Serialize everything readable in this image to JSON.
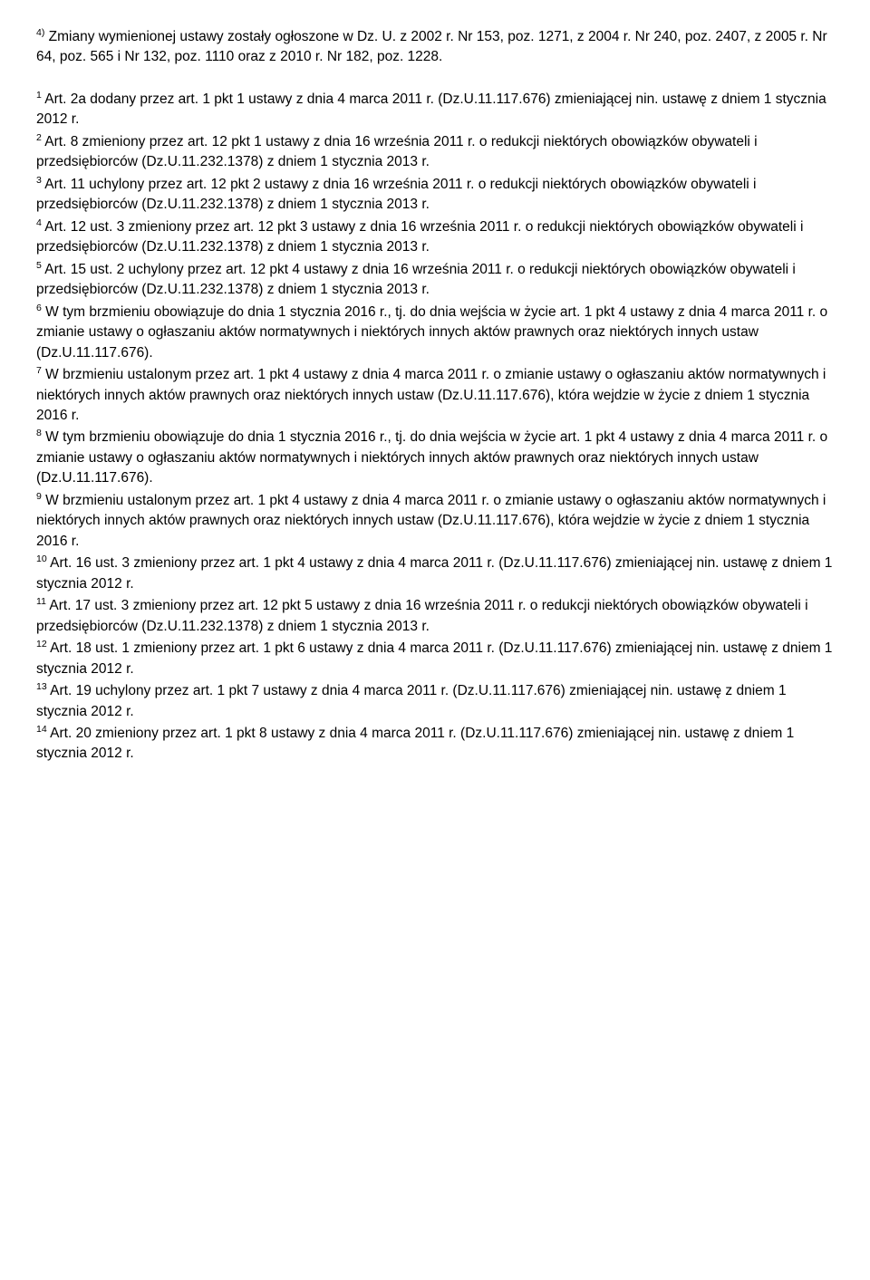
{
  "top_footnote": {
    "num": "4)",
    "text": " Zmiany wymienionej ustawy zostały ogłoszone w Dz. U. z 2002 r. Nr 153, poz. 1271, z 2004 r. Nr 240, poz. 2407, z 2005 r. Nr 64, poz. 565 i Nr 132, poz. 1110 oraz z 2010 r. Nr 182, poz. 1228."
  },
  "notes": [
    {
      "num": "1",
      "text": " Art. 2a dodany przez art. 1 pkt 1 ustawy z dnia 4 marca 2011 r. (Dz.U.11.117.676) zmieniającej nin. ustawę z dniem 1 stycznia 2012 r."
    },
    {
      "num": "2",
      "text": " Art. 8 zmieniony przez art. 12 pkt 1 ustawy z dnia 16 września 2011 r. o redukcji niektórych obowiązków obywateli i przedsiębiorców (Dz.U.11.232.1378) z dniem 1 stycznia 2013 r."
    },
    {
      "num": "3",
      "text": " Art. 11 uchylony przez art. 12 pkt 2 ustawy z dnia 16 września 2011 r. o redukcji niektórych obowiązków obywateli i przedsiębiorców (Dz.U.11.232.1378) z dniem 1 stycznia 2013 r."
    },
    {
      "num": "4",
      "text": " Art. 12 ust. 3 zmieniony przez art. 12 pkt 3 ustawy z dnia 16 września 2011 r. o redukcji niektórych obowiązków obywateli i przedsiębiorców (Dz.U.11.232.1378) z dniem 1 stycznia 2013 r."
    },
    {
      "num": "5",
      "text": " Art. 15 ust. 2 uchylony przez art. 12 pkt 4 ustawy z dnia 16 września 2011 r. o redukcji niektórych obowiązków obywateli i przedsiębiorców (Dz.U.11.232.1378) z dniem 1 stycznia 2013 r."
    },
    {
      "num": "6",
      "text": " W tym brzmieniu obowiązuje do dnia 1 stycznia 2016 r., tj. do dnia wejścia w życie art. 1 pkt 4 ustawy z dnia 4 marca 2011 r. o zmianie ustawy o ogłaszaniu aktów normatywnych i niektórych innych aktów prawnych oraz niektórych innych ustaw (Dz.U.11.117.676)."
    },
    {
      "num": "7",
      "text": " W brzmieniu ustalonym przez art. 1 pkt 4 ustawy z dnia 4 marca 2011 r. o zmianie ustawy o ogłaszaniu aktów normatywnych i niektórych innych aktów prawnych oraz niektórych innych ustaw (Dz.U.11.117.676), która wejdzie w życie z dniem 1 stycznia 2016 r."
    },
    {
      "num": "8",
      "text": " W tym brzmieniu obowiązuje do dnia 1 stycznia 2016 r., tj. do dnia wejścia w życie art. 1 pkt 4 ustawy z dnia 4 marca 2011 r. o zmianie ustawy o ogłaszaniu aktów normatywnych i niektórych innych aktów prawnych oraz niektórych innych ustaw (Dz.U.11.117.676)."
    },
    {
      "num": "9",
      "text": " W brzmieniu ustalonym przez art. 1 pkt 4 ustawy z dnia 4 marca 2011 r. o zmianie ustawy o ogłaszaniu aktów normatywnych i niektórych innych aktów prawnych oraz niektórych innych ustaw (Dz.U.11.117.676), która wejdzie w życie z dniem 1 stycznia 2016 r."
    },
    {
      "num": "10",
      "text": " Art. 16 ust. 3 zmieniony przez art. 1 pkt 4 ustawy z dnia 4 marca 2011 r. (Dz.U.11.117.676) zmieniającej nin. ustawę z dniem 1 stycznia 2012 r."
    },
    {
      "num": "11",
      "text": " Art. 17 ust. 3 zmieniony przez art. 12 pkt 5 ustawy z dnia 16 września 2011 r. o redukcji niektórych obowiązków obywateli i przedsiębiorców (Dz.U.11.232.1378) z dniem 1 stycznia 2013 r."
    },
    {
      "num": "12",
      "text": " Art. 18 ust. 1 zmieniony przez art. 1 pkt 6 ustawy z dnia 4 marca 2011 r. (Dz.U.11.117.676) zmieniającej nin. ustawę z dniem 1 stycznia 2012 r."
    },
    {
      "num": "13",
      "text": " Art. 19 uchylony przez art. 1 pkt 7 ustawy z dnia 4 marca 2011 r. (Dz.U.11.117.676) zmieniającej nin. ustawę z dniem 1 stycznia 2012 r."
    },
    {
      "num": "14",
      "text": " Art. 20 zmieniony przez art. 1 pkt 8 ustawy z dnia 4 marca 2011 r. (Dz.U.11.117.676) zmieniającej nin. ustawę z dniem 1 stycznia 2012 r."
    }
  ]
}
